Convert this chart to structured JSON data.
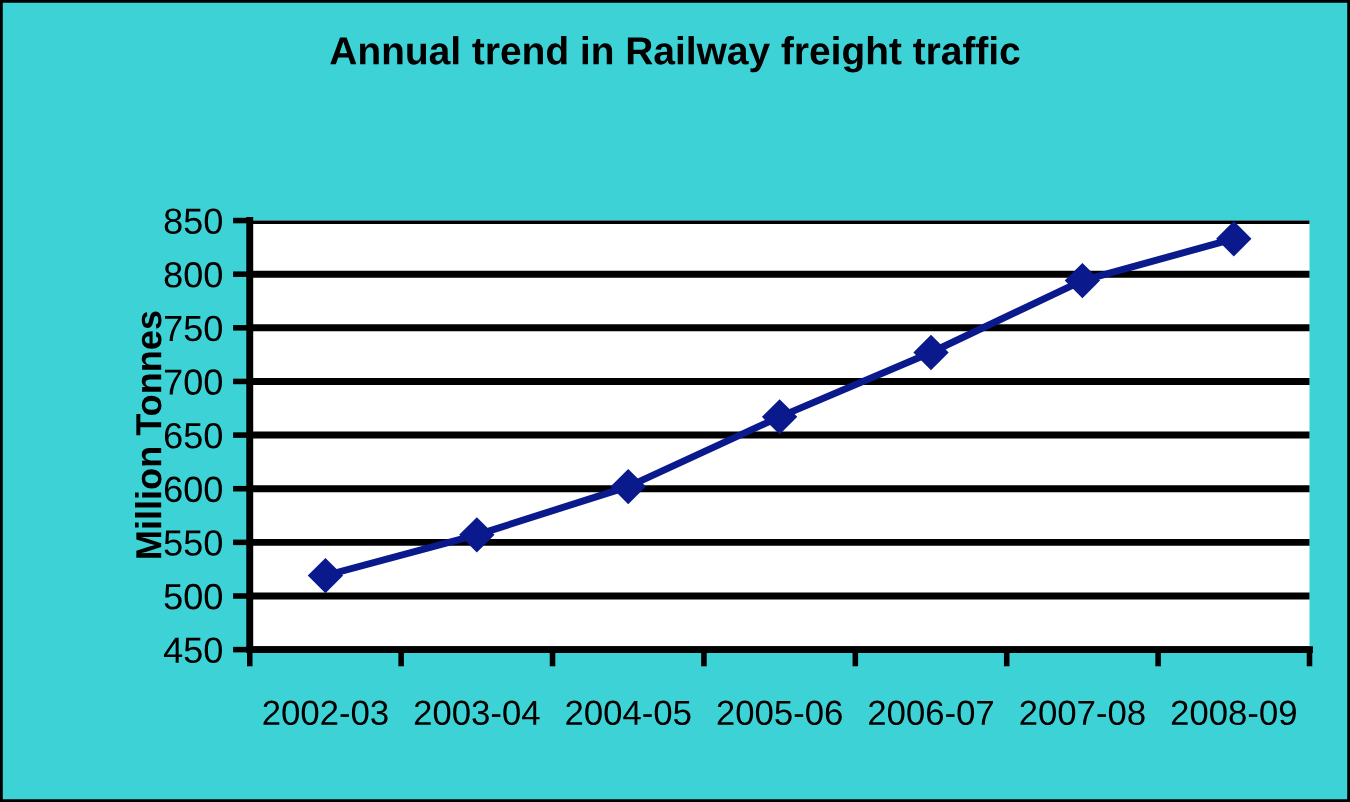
{
  "chart_data": {
    "type": "line",
    "title": "Annual trend in Railway freight traffic",
    "ylabel": "Million Tonnes",
    "categories": [
      "2002-03",
      "2003-04",
      "2004-05",
      "2005-06",
      "2006-07",
      "2007-08",
      "2008-09"
    ],
    "series": [
      {
        "color": "#0a1a8c",
        "values": [
          519,
          557,
          602,
          667,
          727,
          794,
          833
        ]
      }
    ],
    "ylim": [
      450,
      850
    ],
    "yticks": [
      450,
      500,
      550,
      600,
      650,
      700,
      750,
      800,
      850
    ],
    "grid": "y",
    "marker": "diamond",
    "line_style": "solid",
    "legend": false
  }
}
